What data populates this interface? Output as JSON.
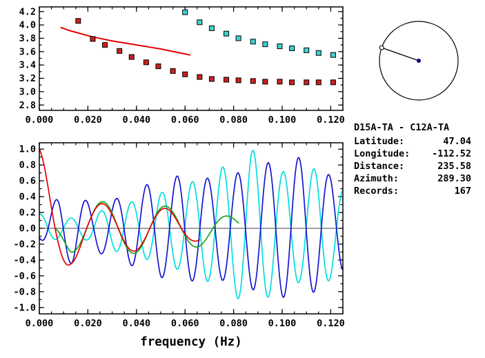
{
  "info_panel": {
    "station_pair": "D15A-TA - C12A-TA",
    "rows": [
      {
        "label": "Latitude:",
        "value": "47.04"
      },
      {
        "label": "Longitude:",
        "value": "-112.52"
      },
      {
        "label": "Distance:",
        "value": "235.58"
      },
      {
        "label": "Azimuth:",
        "value": "289.30"
      },
      {
        "label": "Records:",
        "value": "167"
      }
    ]
  },
  "azimuth_dial": {
    "azimuth_deg": 289.3,
    "circle_color": "#000000",
    "line_color": "#000000",
    "center_dot_color": "#000080",
    "end_marker": "open-circle"
  },
  "chart_data": [
    {
      "id": "dispersion",
      "type": "scatter",
      "title": "",
      "xlabel": "",
      "ylabel": "",
      "xlim": [
        0,
        0.125
      ],
      "ylim": [
        2.72,
        4.27
      ],
      "x_minor_step": 0.005,
      "y_minor_step": 0.1,
      "grid": false,
      "x_ticks": [
        {
          "v": 0.0,
          "label": "0.000"
        },
        {
          "v": 0.02,
          "label": "0.020"
        },
        {
          "v": 0.04,
          "label": "0.040"
        },
        {
          "v": 0.06,
          "label": "0.060"
        },
        {
          "v": 0.08,
          "label": "0.080"
        },
        {
          "v": 0.1,
          "label": "0.100"
        },
        {
          "v": 0.12,
          "label": "0.120"
        }
      ],
      "y_ticks": [
        {
          "v": 2.8,
          "label": "2.8"
        },
        {
          "v": 3.0,
          "label": "3.0"
        },
        {
          "v": 3.2,
          "label": "3.2"
        },
        {
          "v": 3.4,
          "label": "3.4"
        },
        {
          "v": 3.6,
          "label": "3.6"
        },
        {
          "v": 3.8,
          "label": "3.8"
        },
        {
          "v": 4.0,
          "label": "4.0"
        },
        {
          "v": 4.2,
          "label": "4.2"
        }
      ],
      "series": [
        {
          "name": "phase-velocity-curve",
          "type": "line",
          "color": "#e10000",
          "width": 2,
          "points": [
            [
              0.009,
              3.96
            ],
            [
              0.012,
              3.92
            ],
            [
              0.015,
              3.89
            ],
            [
              0.018,
              3.86
            ],
            [
              0.022,
              3.82
            ],
            [
              0.026,
              3.79
            ],
            [
              0.03,
              3.76
            ],
            [
              0.035,
              3.73
            ],
            [
              0.04,
              3.7
            ],
            [
              0.045,
              3.67
            ],
            [
              0.05,
              3.64
            ],
            [
              0.054,
              3.61
            ],
            [
              0.058,
              3.58
            ],
            [
              0.062,
              3.55
            ]
          ]
        },
        {
          "name": "dispersion-branch-red",
          "type": "scatter",
          "color": "#cc2020",
          "edge": "#000000",
          "points": [
            [
              0.016,
              4.06
            ],
            [
              0.022,
              3.79
            ],
            [
              0.027,
              3.7
            ],
            [
              0.033,
              3.61
            ],
            [
              0.038,
              3.52
            ],
            [
              0.044,
              3.44
            ],
            [
              0.049,
              3.38
            ],
            [
              0.055,
              3.31
            ],
            [
              0.06,
              3.26
            ],
            [
              0.066,
              3.22
            ],
            [
              0.071,
              3.19
            ],
            [
              0.077,
              3.18
            ],
            [
              0.082,
              3.17
            ],
            [
              0.088,
              3.16
            ],
            [
              0.093,
              3.15
            ],
            [
              0.099,
              3.15
            ],
            [
              0.104,
              3.14
            ],
            [
              0.11,
              3.14
            ],
            [
              0.115,
              3.14
            ],
            [
              0.121,
              3.14
            ]
          ]
        },
        {
          "name": "dispersion-branch-cyan",
          "type": "scatter",
          "color": "#3fd0d0",
          "edge": "#000000",
          "points": [
            [
              0.06,
              4.19
            ],
            [
              0.066,
              4.04
            ],
            [
              0.071,
              3.95
            ],
            [
              0.077,
              3.87
            ],
            [
              0.082,
              3.8
            ],
            [
              0.088,
              3.75
            ],
            [
              0.093,
              3.71
            ],
            [
              0.099,
              3.68
            ],
            [
              0.104,
              3.65
            ],
            [
              0.11,
              3.62
            ],
            [
              0.115,
              3.58
            ],
            [
              0.121,
              3.55
            ]
          ]
        }
      ]
    },
    {
      "id": "waveforms",
      "type": "line",
      "title": "",
      "xlabel": "frequency (Hz)",
      "ylabel": "",
      "xlim": [
        0,
        0.125
      ],
      "ylim": [
        -1.08,
        1.08
      ],
      "x_minor_step": 0.005,
      "y_minor_step": 0.1,
      "grid": false,
      "zero_line": true,
      "x_ticks": [
        {
          "v": 0.0,
          "label": "0.000"
        },
        {
          "v": 0.02,
          "label": "0.020"
        },
        {
          "v": 0.04,
          "label": "0.040"
        },
        {
          "v": 0.06,
          "label": "0.060"
        },
        {
          "v": 0.08,
          "label": "0.080"
        },
        {
          "v": 0.1,
          "label": "0.100"
        },
        {
          "v": 0.12,
          "label": "0.120"
        }
      ],
      "y_ticks": [
        {
          "v": 1.0,
          "label": "1.0"
        },
        {
          "v": 0.8,
          "label": "0.8"
        },
        {
          "v": 0.6,
          "label": "0.6"
        },
        {
          "v": 0.4,
          "label": "0.4"
        },
        {
          "v": 0.2,
          "label": "0.2"
        },
        {
          "v": 0.0,
          "label": "0.0"
        },
        {
          "v": -0.2,
          "label": "-0.2"
        },
        {
          "v": -0.4,
          "label": "-0.4"
        },
        {
          "v": -0.6,
          "label": "-0.6"
        },
        {
          "v": -0.8,
          "label": "-0.8"
        },
        {
          "v": -1.0,
          "label": "-1.0"
        }
      ],
      "series": [
        {
          "name": "waveform-cyan",
          "model": "am_sine",
          "color": "#00dede",
          "width": 1.7,
          "period": 0.0125,
          "phase": 1.3196,
          "domain": [
            0,
            0.125
          ],
          "amp": [
            [
              0,
              0.18
            ],
            [
              0.01,
              0.12
            ],
            [
              0.02,
              0.15
            ],
            [
              0.03,
              0.28
            ],
            [
              0.04,
              0.35
            ],
            [
              0.05,
              0.45
            ],
            [
              0.06,
              0.55
            ],
            [
              0.07,
              0.68
            ],
            [
              0.08,
              0.85
            ],
            [
              0.087,
              1.0
            ],
            [
              0.093,
              0.9
            ],
            [
              0.1,
              0.72
            ],
            [
              0.108,
              0.68
            ],
            [
              0.115,
              0.78
            ],
            [
              0.125,
              0.5
            ]
          ]
        },
        {
          "name": "waveform-blue",
          "model": "am_sine",
          "color": "#1515cf",
          "width": 1.7,
          "period": 0.0125,
          "phase": -1.822,
          "domain": [
            0,
            0.125
          ],
          "amp": [
            [
              0,
              0.12
            ],
            [
              0.008,
              0.4
            ],
            [
              0.014,
              0.45
            ],
            [
              0.022,
              0.3
            ],
            [
              0.03,
              0.35
            ],
            [
              0.04,
              0.5
            ],
            [
              0.05,
              0.62
            ],
            [
              0.06,
              0.68
            ],
            [
              0.07,
              0.63
            ],
            [
              0.08,
              0.68
            ],
            [
              0.09,
              0.8
            ],
            [
              0.1,
              0.87
            ],
            [
              0.108,
              0.9
            ],
            [
              0.116,
              0.75
            ],
            [
              0.125,
              0.55
            ]
          ]
        },
        {
          "name": "waveform-green",
          "model": "am_sine",
          "color": "#16a816",
          "width": 1.7,
          "period": 0.026,
          "phase": 1.5708,
          "domain": [
            0.007,
            0.082
          ],
          "amp": [
            [
              0.007,
              0.1
            ],
            [
              0.013,
              0.3
            ],
            [
              0.02,
              0.33
            ],
            [
              0.03,
              0.34
            ],
            [
              0.045,
              0.3
            ],
            [
              0.06,
              0.26
            ],
            [
              0.072,
              0.2
            ],
            [
              0.082,
              0.12
            ]
          ]
        },
        {
          "name": "waveform-red",
          "model": "am_sine",
          "color": "#e10000",
          "width": 1.7,
          "period": 0.026,
          "phase": 1.5708,
          "domain": [
            0,
            0.066
          ],
          "amp": [
            [
              0,
              1.0
            ],
            [
              0.007,
              0.62
            ],
            [
              0.013,
              0.45
            ],
            [
              0.02,
              0.33
            ],
            [
              0.03,
              0.3
            ],
            [
              0.045,
              0.28
            ],
            [
              0.055,
              0.24
            ],
            [
              0.066,
              0.15
            ]
          ]
        }
      ]
    }
  ]
}
